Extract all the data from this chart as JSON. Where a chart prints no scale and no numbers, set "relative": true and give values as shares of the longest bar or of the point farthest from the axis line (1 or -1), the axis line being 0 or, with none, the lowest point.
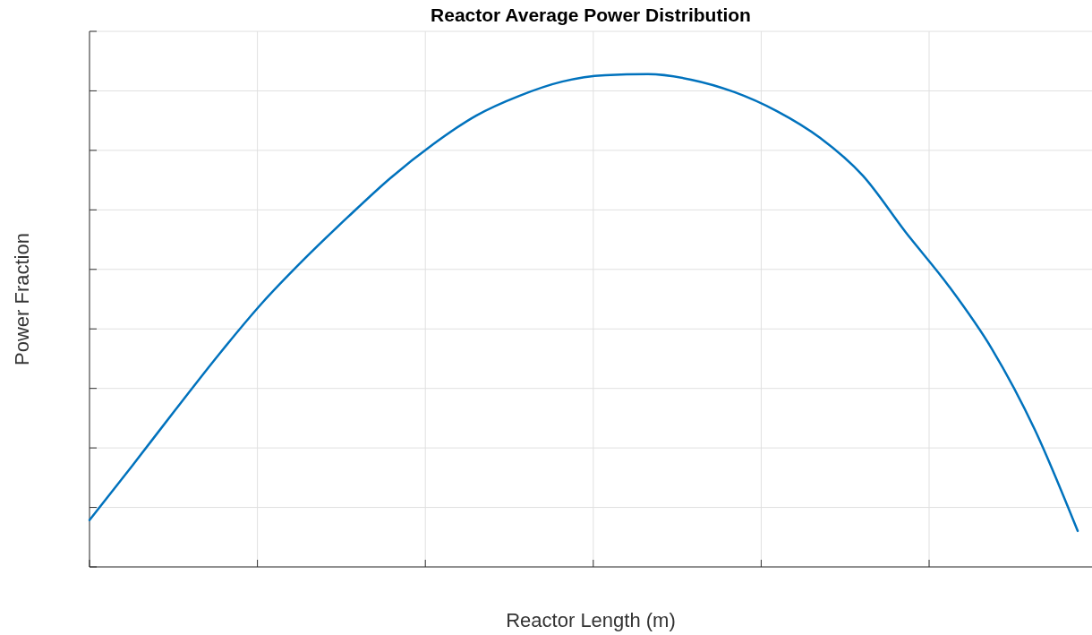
{
  "chart_data": {
    "type": "line",
    "title": "Reactor Average Power Distribution",
    "xlabel": "Reactor Length (m)",
    "ylabel": "Power Fraction",
    "relative": true,
    "grid": true,
    "categories": [
      null,
      null,
      null,
      null,
      null,
      null,
      null,
      null,
      null,
      null,
      null,
      null,
      null,
      null,
      null,
      null,
      null,
      null,
      null,
      null,
      null,
      null,
      null,
      null
    ],
    "series": [
      {
        "color": "#0072bd",
        "values": [
          0.095,
          0.206,
          0.319,
          0.43,
          0.534,
          0.625,
          0.709,
          0.789,
          0.858,
          0.916,
          0.956,
          0.985,
          0.998,
          1,
          0.989,
          0.964,
          0.925,
          0.871,
          0.794,
          0.679,
          0.57,
          0.443,
          0.279,
          0.073
        ]
      }
    ]
  }
}
